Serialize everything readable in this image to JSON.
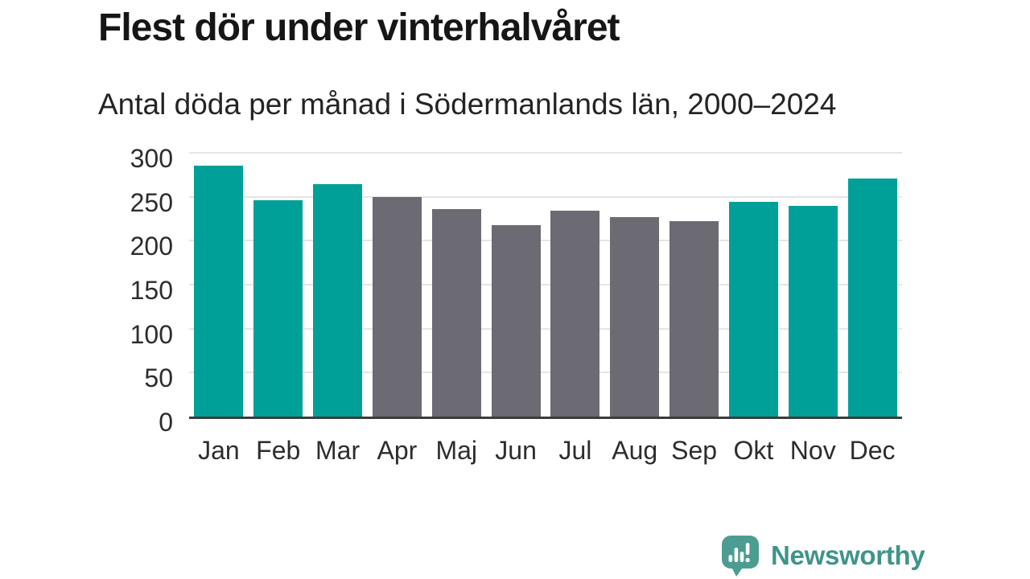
{
  "header": {
    "title": "Flest dör under vinterhalvåret",
    "subtitle": "Antal döda per månad i Södermanlands län, 2000–2024"
  },
  "chart_data": {
    "type": "bar",
    "categories": [
      "Jan",
      "Feb",
      "Mar",
      "Apr",
      "Maj",
      "Jun",
      "Jul",
      "Aug",
      "Sep",
      "Okt",
      "Nov",
      "Dec"
    ],
    "values": [
      285,
      246,
      264,
      250,
      236,
      218,
      234,
      227,
      222,
      244,
      240,
      271
    ],
    "groups": [
      "winter",
      "winter",
      "winter",
      "summer",
      "summer",
      "summer",
      "summer",
      "summer",
      "summer",
      "winter",
      "winter",
      "winter"
    ],
    "title": "Flest dör under vinterhalvåret",
    "subtitle": "Antal döda per månad i Södermanlands län, 2000–2024",
    "xlabel": "",
    "ylabel": "",
    "ylim": [
      0,
      300
    ],
    "yticks": [
      0,
      50,
      100,
      150,
      200,
      250,
      300
    ],
    "grid": true,
    "legend": false,
    "colors": {
      "winter": "#00a099",
      "summer": "#6c6a73"
    }
  },
  "style_colors": {
    "gridline": "#e5e5e5",
    "axis_line": "#3c3c3c",
    "tick_text": "#2d2d2d",
    "logo_bubble": "#4d9c92",
    "logo_text": "#3e948b"
  },
  "footer": {
    "brand": "Newsworthy",
    "logo_icon": "bar-chart-speech-bubble-icon"
  }
}
